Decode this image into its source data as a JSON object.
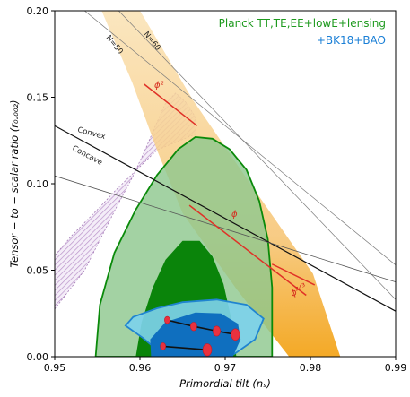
{
  "chart_data": {
    "type": "contour",
    "xlabel": "Primordial tilt (nₛ)",
    "ylabel": "Tensor − to − scalar ratio (r₀.₀₀₂)",
    "xlim": [
      0.95,
      0.99
    ],
    "ylim": [
      0.0,
      0.2
    ],
    "xticks": [
      "0.95",
      "0.96",
      "0.97",
      "0.98",
      "0.99"
    ],
    "yticks": [
      "0.00",
      "0.05",
      "0.10",
      "0.15",
      "0.20"
    ],
    "legend": [
      {
        "label": "Planck TT,TE,EE+lowE+lensing",
        "color": "#1e9a1e"
      },
      {
        "label": "+BK18+BAO",
        "color": "#1a7fd6"
      }
    ],
    "annotations": {
      "convex": "Convex",
      "concave": "Concave",
      "n50": "N=50",
      "n60": "N=60",
      "phi2": "ϕ²",
      "phi": "ϕ",
      "phi23": "ϕ²ᐟ³"
    },
    "regions": {
      "planck_outer": [
        [
          0.9548,
          0.0
        ],
        [
          0.9553,
          0.03
        ],
        [
          0.957,
          0.06
        ],
        [
          0.9595,
          0.085
        ],
        [
          0.962,
          0.105
        ],
        [
          0.9645,
          0.12
        ],
        [
          0.9665,
          0.127
        ],
        [
          0.9685,
          0.126
        ],
        [
          0.9705,
          0.12
        ],
        [
          0.9725,
          0.108
        ],
        [
          0.974,
          0.09
        ],
        [
          0.975,
          0.068
        ],
        [
          0.9755,
          0.04
        ],
        [
          0.9755,
          0.0
        ]
      ],
      "planck_inner": [
        [
          0.9595,
          0.0
        ],
        [
          0.9602,
          0.02
        ],
        [
          0.9615,
          0.04
        ],
        [
          0.963,
          0.056
        ],
        [
          0.965,
          0.067
        ],
        [
          0.967,
          0.067
        ],
        [
          0.9685,
          0.058
        ],
        [
          0.9698,
          0.042
        ],
        [
          0.9708,
          0.02
        ],
        [
          0.9713,
          0.0
        ]
      ],
      "bk_outer": [
        [
          0.9623,
          0.0
        ],
        [
          0.962,
          0.004
        ],
        [
          0.9603,
          0.011
        ],
        [
          0.9583,
          0.018
        ],
        [
          0.9592,
          0.023
        ],
        [
          0.962,
          0.028
        ],
        [
          0.965,
          0.0315
        ],
        [
          0.969,
          0.033
        ],
        [
          0.9725,
          0.03
        ],
        [
          0.9745,
          0.022
        ],
        [
          0.9735,
          0.01
        ],
        [
          0.9712,
          0.002
        ],
        [
          0.9705,
          0.0
        ]
      ],
      "bk_inner": [
        [
          0.9613,
          0.0
        ],
        [
          0.9612,
          0.01
        ],
        [
          0.963,
          0.02
        ],
        [
          0.9665,
          0.0255
        ],
        [
          0.9695,
          0.025
        ],
        [
          0.9715,
          0.019
        ],
        [
          0.9718,
          0.01
        ],
        [
          0.9709,
          0.0
        ]
      ],
      "n_band": [
        [
          0.9555,
          0.2
        ],
        [
          0.96,
          0.2
        ],
        [
          0.9662,
          0.1485
        ],
        [
          0.973,
          0.0996
        ],
        [
          0.9803,
          0.048
        ],
        [
          0.9835,
          0.0
        ],
        [
          0.9775,
          0.0
        ],
        [
          0.9713,
          0.0392
        ],
        [
          0.965,
          0.083
        ],
        [
          0.962,
          0.1195
        ],
        [
          0.9591,
          0.1585
        ]
      ],
      "concave_wedge": [
        [
          0.95,
          0.0275
        ],
        [
          0.9535,
          0.05
        ],
        [
          0.9573,
          0.087
        ],
        [
          0.9591,
          0.1035
        ],
        [
          0.9606,
          0.1195
        ],
        [
          0.9619,
          0.1345
        ],
        [
          0.963,
          0.1465
        ],
        [
          0.9642,
          0.1525
        ],
        [
          0.9655,
          0.1465
        ],
        [
          0.9665,
          0.1385
        ],
        [
          0.9666,
          0.1288
        ],
        [
          0.962,
          0.1195
        ],
        [
          0.9572,
          0.0965
        ],
        [
          0.955,
          0.085
        ],
        [
          0.952,
          0.07
        ],
        [
          0.95,
          0.0584
        ]
      ]
    },
    "lines": {
      "convex_concave": [
        [
          0.95,
          0.1335
        ],
        [
          0.99,
          0.0263
        ]
      ],
      "n50_diag": [
        [
          0.9535,
          0.2
        ],
        [
          0.99,
          0.053
        ]
      ],
      "n60_diag": [
        [
          0.9575,
          0.2
        ],
        [
          0.99,
          0.033
        ]
      ],
      "concave_lower": [
        [
          0.95,
          0.1045
        ],
        [
          0.99,
          0.0432
        ]
      ],
      "phi2_segment": [
        [
          0.9605,
          0.1575
        ],
        [
          0.9667,
          0.1335
        ]
      ],
      "phi_segment": [
        [
          0.9658,
          0.0875
        ],
        [
          0.9795,
          0.0355
        ]
      ],
      "phi23_segment": [
        [
          0.9755,
          0.0535
        ],
        [
          0.9805,
          0.0415
        ]
      ]
    },
    "series": [
      {
        "x": [
          0.9632,
          0.9663,
          0.969,
          0.9712
        ],
        "y": [
          0.0212,
          0.0175,
          0.0148,
          0.0128
        ]
      },
      {
        "x": [
          0.9627,
          0.9679
        ],
        "y": [
          0.006,
          0.004
        ]
      }
    ],
    "colors": {
      "planck_outer": "#8fc88f",
      "planck_inner": "#0a840a",
      "bk_outer": "#7dd1ea",
      "bk_inner": "#0f6fbf",
      "n_band": "#f3c179",
      "wedge": "#c8a6d9",
      "red": "#e03127",
      "marker": "#e8313e"
    }
  }
}
